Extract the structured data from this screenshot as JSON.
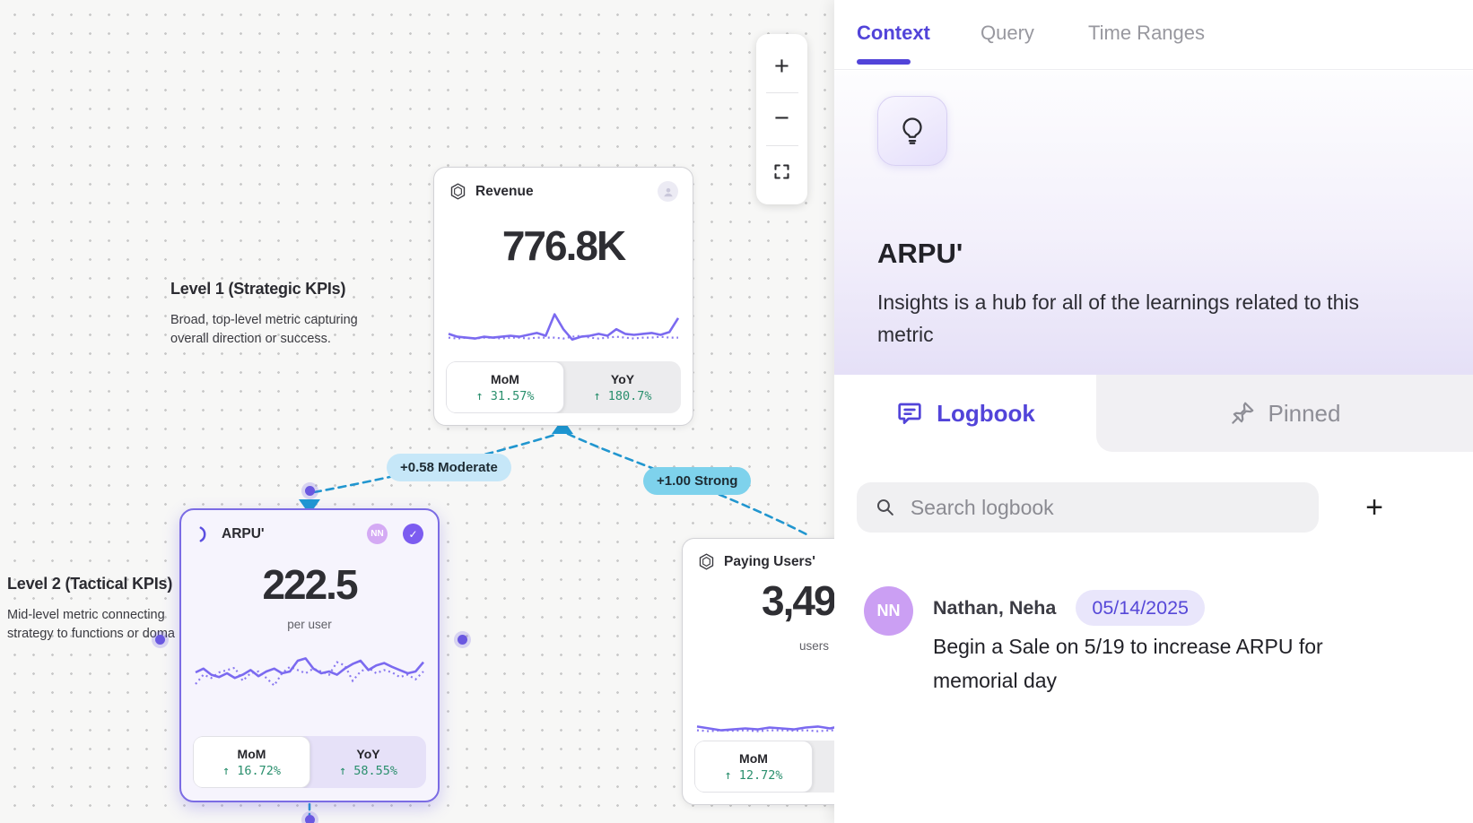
{
  "colors": {
    "accent": "#5244d9",
    "green": "#2a8f6d",
    "sparkline": "#7b6af0",
    "edge_blue": "#2196cf",
    "badge_moderate_bg": "#c6e7f8",
    "badge_strong_bg": "#7ed2ec",
    "selected_card_border": "#7b6ce4",
    "avatar_purple": "#cb9ff3"
  },
  "canvas": {
    "zoom_toolbar": {
      "zoom_in": "+",
      "zoom_out": "−"
    },
    "levels": [
      {
        "title": "Level 1 (Strategic KPIs)",
        "description": "Broad, top-level metric capturing\noverall direction or success."
      },
      {
        "title": "Level 2 (Tactical KPIs)",
        "description": "Mid-level metric connecting\nstrategy to functions or doma"
      }
    ],
    "edges": [
      {
        "label": "+0.58 Moderate"
      },
      {
        "label": "+1.00 Strong"
      }
    ],
    "cards": [
      {
        "title": "Revenue",
        "value": "776.8K",
        "unit": "",
        "footer": {
          "mom_label": "MoM",
          "mom_value": "↑ 31.57%",
          "yoy_label": "YoY",
          "yoy_value": "↑ 180.7%"
        },
        "spark": {
          "solid": [
            0.72,
            0.78,
            0.8,
            0.82,
            0.78,
            0.8,
            0.78,
            0.76,
            0.78,
            0.74,
            0.7,
            0.76,
            0.3,
            0.62,
            0.84,
            0.78,
            0.76,
            0.72,
            0.76,
            0.62,
            0.72,
            0.74,
            0.72,
            0.7,
            0.74,
            0.68,
            0.38
          ],
          "dotted": [
            0.8,
            0.82,
            0.8,
            0.82,
            0.8,
            0.8,
            0.82,
            0.8,
            0.8,
            0.82,
            0.8,
            0.8,
            0.8,
            0.82,
            0.78,
            0.76,
            0.8,
            0.82,
            0.8,
            0.78,
            0.8,
            0.82,
            0.8,
            0.8,
            0.78,
            0.8,
            0.8
          ]
        }
      },
      {
        "title": "ARPU'",
        "value": "222.5",
        "unit": "per user",
        "avatar_initials": "NN",
        "verified": "✓",
        "footer": {
          "mom_label": "MoM",
          "mom_value": "↑ 16.72%",
          "yoy_label": "YoY",
          "yoy_value": "↑ 58.55%"
        },
        "spark": {
          "solid": [
            0.5,
            0.42,
            0.55,
            0.6,
            0.52,
            0.62,
            0.55,
            0.45,
            0.58,
            0.48,
            0.42,
            0.52,
            0.48,
            0.25,
            0.2,
            0.42,
            0.52,
            0.48,
            0.55,
            0.42,
            0.32,
            0.25,
            0.45,
            0.35,
            0.3,
            0.38,
            0.45,
            0.52,
            0.48,
            0.28
          ],
          "dotted": [
            0.75,
            0.55,
            0.62,
            0.5,
            0.45,
            0.4,
            0.68,
            0.52,
            0.48,
            0.62,
            0.78,
            0.52,
            0.38,
            0.45,
            0.52,
            0.42,
            0.48,
            0.55,
            0.28,
            0.35,
            0.68,
            0.48,
            0.4,
            0.52,
            0.45,
            0.5,
            0.6,
            0.55,
            0.65,
            0.48
          ]
        }
      },
      {
        "title": "Paying Users'",
        "value": "3,49",
        "unit": "users",
        "footer": {
          "mom_label": "MoM",
          "mom_value": "↑ 12.72%"
        },
        "spark": {
          "solid": [
            0.72,
            0.76,
            0.8,
            0.78,
            0.76,
            0.78,
            0.74,
            0.76,
            0.78,
            0.74,
            0.72,
            0.76,
            0.7,
            0.74,
            0.25,
            0.55,
            0.78,
            0.76,
            0.74,
            0.72
          ],
          "dotted": [
            0.8,
            0.82,
            0.8,
            0.81,
            0.8,
            0.82,
            0.8,
            0.8,
            0.81,
            0.8,
            0.82,
            0.8,
            0.8,
            0.81,
            0.8,
            0.8,
            0.82,
            0.8,
            0.81,
            0.8
          ]
        }
      }
    ]
  },
  "panel": {
    "tabs": [
      {
        "label": "Context"
      },
      {
        "label": "Query"
      },
      {
        "label": "Time Ranges"
      }
    ],
    "metric": {
      "title": "ARPU'",
      "description": "Insights is a hub for all of the learnings related to this metric"
    },
    "views": {
      "logbook_label": "Logbook",
      "pinned_label": "Pinned"
    },
    "search": {
      "placeholder": "Search logbook",
      "add_button": "+"
    },
    "logbook_entries": [
      {
        "avatar_initials": "NN",
        "author": "Nathan, Neha",
        "date": "05/14/2025",
        "text": "Begin a Sale on 5/19 to increase ARPU for memorial day"
      }
    ]
  }
}
